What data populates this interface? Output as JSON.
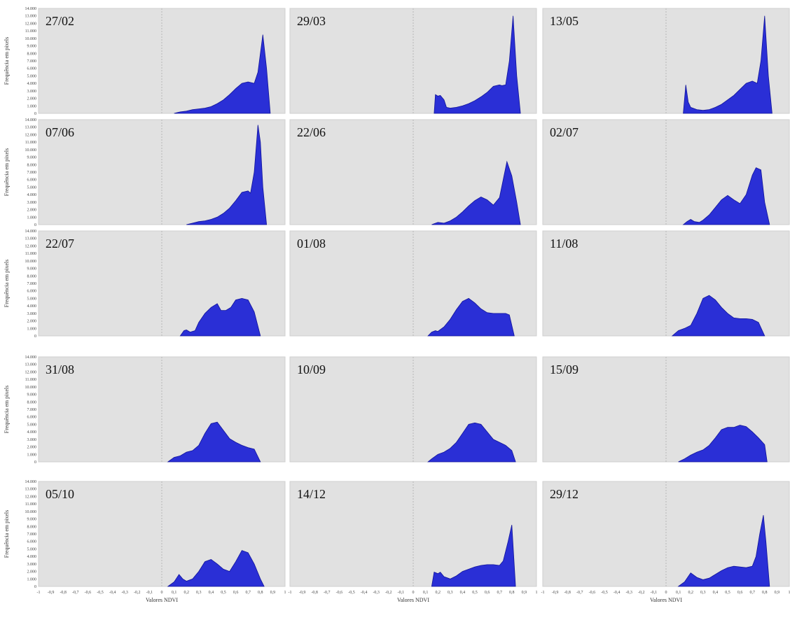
{
  "chart_data": {
    "type": "area",
    "y_axis_label": "Frequência em pixels",
    "x_axis_label": "Valores NDVI",
    "xlim": [
      -1,
      1
    ],
    "ylim": [
      0,
      14000
    ],
    "y_ticks": [
      "0",
      "1.000",
      "2.000",
      "3.000",
      "4.000",
      "5.000",
      "6.000",
      "7.000",
      "8.000",
      "9.000",
      "10.000",
      "11.000",
      "12.000",
      "13.000",
      "14.000"
    ],
    "x_ticks": [
      "-1",
      "-0,9",
      "-0,8",
      "-0,7",
      "-0,6",
      "-0,5",
      "-0,4",
      "-0,3",
      "-0,2",
      "-0,1",
      "0",
      "0,1",
      "0,2",
      "0,3",
      "0,4",
      "0,5",
      "0,6",
      "0,7",
      "0,8",
      "0,9",
      "1"
    ],
    "fill_color": "#2a2fd6",
    "panel_bg": "#e1e1e1",
    "grid": true,
    "panels": [
      {
        "date": "27/02",
        "x": [
          0.1,
          0.15,
          0.2,
          0.25,
          0.3,
          0.35,
          0.4,
          0.45,
          0.5,
          0.55,
          0.6,
          0.65,
          0.7,
          0.75,
          0.78,
          0.82,
          0.85,
          0.88
        ],
        "y": [
          0,
          200,
          300,
          500,
          600,
          700,
          900,
          1300,
          1800,
          2500,
          3300,
          4000,
          4200,
          4000,
          5500,
          10500,
          6000,
          0
        ]
      },
      {
        "date": "29/03",
        "x": [
          0.17,
          0.18,
          0.2,
          0.22,
          0.25,
          0.27,
          0.3,
          0.35,
          0.4,
          0.45,
          0.5,
          0.55,
          0.6,
          0.65,
          0.7,
          0.72,
          0.75,
          0.78,
          0.81,
          0.84,
          0.87
        ],
        "y": [
          0,
          2500,
          2300,
          2400,
          1800,
          800,
          700,
          800,
          1000,
          1300,
          1700,
          2200,
          2800,
          3600,
          3800,
          3700,
          3800,
          7000,
          13000,
          5000,
          0
        ]
      },
      {
        "date": "13/05",
        "x": [
          0.14,
          0.16,
          0.18,
          0.2,
          0.25,
          0.3,
          0.35,
          0.4,
          0.45,
          0.5,
          0.55,
          0.6,
          0.65,
          0.7,
          0.74,
          0.77,
          0.8,
          0.83,
          0.86
        ],
        "y": [
          0,
          3800,
          1500,
          800,
          500,
          400,
          500,
          800,
          1200,
          1800,
          2400,
          3200,
          4000,
          4300,
          4000,
          7000,
          13000,
          5000,
          0
        ]
      },
      {
        "date": "07/06",
        "x": [
          0.2,
          0.25,
          0.3,
          0.35,
          0.4,
          0.45,
          0.5,
          0.55,
          0.6,
          0.65,
          0.7,
          0.72,
          0.75,
          0.78,
          0.8,
          0.82,
          0.85
        ],
        "y": [
          0,
          200,
          400,
          500,
          700,
          1000,
          1500,
          2200,
          3200,
          4300,
          4500,
          4200,
          7000,
          13300,
          11000,
          5000,
          0
        ]
      },
      {
        "date": "22/06",
        "x": [
          0.15,
          0.2,
          0.25,
          0.3,
          0.35,
          0.4,
          0.45,
          0.5,
          0.55,
          0.6,
          0.65,
          0.7,
          0.73,
          0.76,
          0.8,
          0.84,
          0.87
        ],
        "y": [
          0,
          300,
          200,
          500,
          1000,
          1700,
          2500,
          3200,
          3700,
          3300,
          2600,
          3600,
          6000,
          8400,
          6500,
          3000,
          0
        ]
      },
      {
        "date": "02/07",
        "x": [
          0.14,
          0.17,
          0.2,
          0.23,
          0.27,
          0.3,
          0.35,
          0.4,
          0.45,
          0.5,
          0.55,
          0.6,
          0.65,
          0.7,
          0.73,
          0.77,
          0.8,
          0.84
        ],
        "y": [
          0,
          400,
          700,
          400,
          300,
          600,
          1300,
          2300,
          3300,
          3900,
          3300,
          2800,
          4000,
          6600,
          7600,
          7300,
          3000,
          0
        ]
      },
      {
        "date": "22/07",
        "x": [
          0.15,
          0.18,
          0.2,
          0.23,
          0.27,
          0.3,
          0.35,
          0.4,
          0.45,
          0.48,
          0.52,
          0.56,
          0.6,
          0.65,
          0.7,
          0.75,
          0.8
        ],
        "y": [
          0,
          700,
          800,
          500,
          700,
          1800,
          3000,
          3800,
          4300,
          3400,
          3400,
          3800,
          4800,
          5000,
          4800,
          3200,
          0
        ]
      },
      {
        "date": "01/08",
        "x": [
          0.12,
          0.15,
          0.18,
          0.2,
          0.25,
          0.3,
          0.35,
          0.4,
          0.45,
          0.5,
          0.55,
          0.6,
          0.65,
          0.7,
          0.75,
          0.78,
          0.82
        ],
        "y": [
          0,
          500,
          700,
          600,
          1200,
          2200,
          3500,
          4600,
          5000,
          4400,
          3600,
          3100,
          3000,
          3000,
          3000,
          2800,
          0
        ]
      },
      {
        "date": "11/08",
        "x": [
          0.05,
          0.1,
          0.15,
          0.2,
          0.25,
          0.3,
          0.35,
          0.4,
          0.45,
          0.5,
          0.55,
          0.6,
          0.65,
          0.7,
          0.75,
          0.8
        ],
        "y": [
          0,
          700,
          1000,
          1400,
          3000,
          5000,
          5400,
          4800,
          3800,
          3000,
          2400,
          2300,
          2300,
          2200,
          1800,
          0
        ]
      },
      {
        "date": "31/08",
        "x": [
          0.05,
          0.1,
          0.15,
          0.2,
          0.25,
          0.3,
          0.35,
          0.4,
          0.45,
          0.5,
          0.55,
          0.6,
          0.65,
          0.7,
          0.75,
          0.8
        ],
        "y": [
          0,
          600,
          800,
          1300,
          1500,
          2200,
          3800,
          5100,
          5300,
          4200,
          3100,
          2600,
          2200,
          1900,
          1700,
          0
        ]
      },
      {
        "date": "10/09",
        "x": [
          0.12,
          0.15,
          0.2,
          0.25,
          0.3,
          0.35,
          0.4,
          0.45,
          0.5,
          0.55,
          0.6,
          0.65,
          0.7,
          0.75,
          0.8,
          0.83
        ],
        "y": [
          0,
          400,
          1000,
          1300,
          1800,
          2600,
          3800,
          5000,
          5200,
          5000,
          4000,
          3000,
          2600,
          2200,
          1500,
          0
        ]
      },
      {
        "date": "15/09",
        "x": [
          0.1,
          0.15,
          0.2,
          0.25,
          0.3,
          0.35,
          0.4,
          0.45,
          0.5,
          0.55,
          0.6,
          0.65,
          0.7,
          0.75,
          0.8,
          0.82
        ],
        "y": [
          0,
          400,
          900,
          1300,
          1600,
          2200,
          3200,
          4300,
          4600,
          4600,
          4900,
          4700,
          4000,
          3200,
          2300,
          0
        ]
      },
      {
        "date": "05/10",
        "x": [
          0.05,
          0.1,
          0.14,
          0.17,
          0.2,
          0.25,
          0.3,
          0.35,
          0.4,
          0.45,
          0.5,
          0.55,
          0.6,
          0.65,
          0.7,
          0.75,
          0.8,
          0.83
        ],
        "y": [
          0,
          600,
          1600,
          1000,
          700,
          1000,
          2000,
          3300,
          3600,
          3000,
          2300,
          2000,
          3300,
          4800,
          4500,
          3000,
          1000,
          0
        ]
      },
      {
        "date": "14/12",
        "x": [
          0.15,
          0.17,
          0.2,
          0.22,
          0.25,
          0.3,
          0.35,
          0.4,
          0.45,
          0.5,
          0.55,
          0.6,
          0.65,
          0.7,
          0.73,
          0.77,
          0.8,
          0.83
        ],
        "y": [
          0,
          1900,
          1700,
          1900,
          1300,
          1000,
          1400,
          2000,
          2300,
          2600,
          2800,
          2900,
          2900,
          2800,
          3400,
          6000,
          8200,
          0
        ]
      },
      {
        "date": "29/12",
        "x": [
          0.1,
          0.15,
          0.2,
          0.25,
          0.3,
          0.35,
          0.4,
          0.45,
          0.5,
          0.55,
          0.6,
          0.65,
          0.7,
          0.73,
          0.76,
          0.79,
          0.81,
          0.84
        ],
        "y": [
          0,
          600,
          1800,
          1200,
          900,
          1100,
          1600,
          2100,
          2500,
          2700,
          2600,
          2500,
          2700,
          4000,
          7000,
          9500,
          6000,
          0
        ]
      }
    ]
  }
}
